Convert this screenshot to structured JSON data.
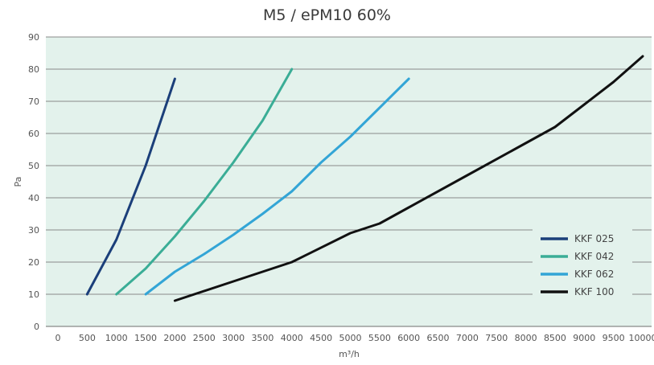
{
  "chart_data": {
    "type": "line",
    "title": "M5 / ePM10 60%",
    "xlabel": "m³/h",
    "ylabel": "Pa",
    "xlim": [
      0,
      10000
    ],
    "ylim": [
      0,
      90
    ],
    "x_ticks": [
      0,
      500,
      1000,
      1500,
      2000,
      2500,
      3000,
      3500,
      4000,
      4500,
      5000,
      5500,
      6000,
      6500,
      7000,
      7500,
      8000,
      8500,
      9000,
      9500,
      10000
    ],
    "y_ticks": [
      0,
      10,
      20,
      30,
      40,
      50,
      60,
      70,
      80,
      90
    ],
    "grid": "horizontal",
    "background_color": "#e3f2ec",
    "legend_position": "bottom-right",
    "series": [
      {
        "name": "KKF 025",
        "color": "#1b3f7a",
        "x": [
          500,
          1000,
          1500,
          2000
        ],
        "y": [
          10,
          27,
          50,
          77
        ]
      },
      {
        "name": "KKF 042",
        "color": "#3aad96",
        "x": [
          1000,
          1500,
          2000,
          2500,
          3000,
          3500,
          4000
        ],
        "y": [
          10,
          18,
          28,
          39,
          51,
          64,
          80
        ]
      },
      {
        "name": "KKF 062",
        "color": "#33a5d6",
        "x": [
          1500,
          2000,
          2500,
          3000,
          3500,
          4000,
          4500,
          5000,
          5500,
          6000
        ],
        "y": [
          10,
          17,
          22.5,
          28.5,
          35,
          42,
          51,
          59,
          68,
          77
        ]
      },
      {
        "name": "KKF 100",
        "color": "#111111",
        "x": [
          2000,
          3000,
          4000,
          5000,
          5500,
          6000,
          7000,
          8000,
          8500,
          9000,
          9500,
          10000
        ],
        "y": [
          8,
          14,
          20,
          29,
          32,
          37,
          47,
          57,
          62,
          69,
          76,
          84
        ]
      }
    ]
  }
}
